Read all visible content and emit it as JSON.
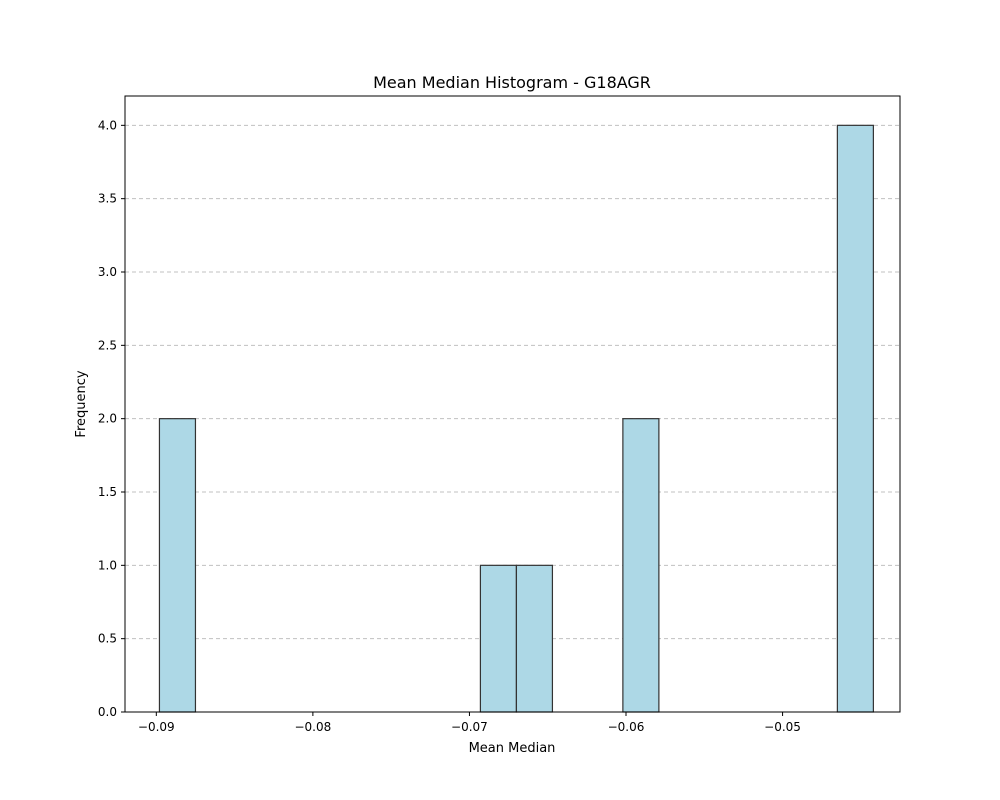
{
  "chart_data": {
    "type": "bar",
    "title": "Mean Median Histogram - G18AGR",
    "xlabel": "Mean Median",
    "ylabel": "Frequency",
    "xlim": [
      -0.092,
      -0.0425
    ],
    "ylim": [
      0,
      4.2
    ],
    "xticks": [
      {
        "value": -0.09,
        "label": "−0.09"
      },
      {
        "value": -0.08,
        "label": "−0.08"
      },
      {
        "value": -0.07,
        "label": "−0.07"
      },
      {
        "value": -0.06,
        "label": "−0.06"
      },
      {
        "value": -0.05,
        "label": "−0.05"
      }
    ],
    "yticks": [
      {
        "value": 0.0,
        "label": "0.0"
      },
      {
        "value": 0.5,
        "label": "0.5"
      },
      {
        "value": 1.0,
        "label": "1.0"
      },
      {
        "value": 1.5,
        "label": "1.5"
      },
      {
        "value": 2.0,
        "label": "2.0"
      },
      {
        "value": 2.5,
        "label": "2.5"
      },
      {
        "value": 3.0,
        "label": "3.0"
      },
      {
        "value": 3.5,
        "label": "3.5"
      },
      {
        "value": 4.0,
        "label": "4.0"
      }
    ],
    "bins": [
      {
        "start": -0.0898,
        "end": -0.0875,
        "count": 2
      },
      {
        "start": -0.0693,
        "end": -0.067,
        "count": 1
      },
      {
        "start": -0.067,
        "end": -0.0647,
        "count": 1
      },
      {
        "start": -0.0602,
        "end": -0.0579,
        "count": 2
      },
      {
        "start": -0.0465,
        "end": -0.0442,
        "count": 4
      }
    ],
    "grid": "y-dashed",
    "bar_color": "#add8e6",
    "bar_edge_color": "#333333",
    "grid_color": "#c0c0c0"
  }
}
